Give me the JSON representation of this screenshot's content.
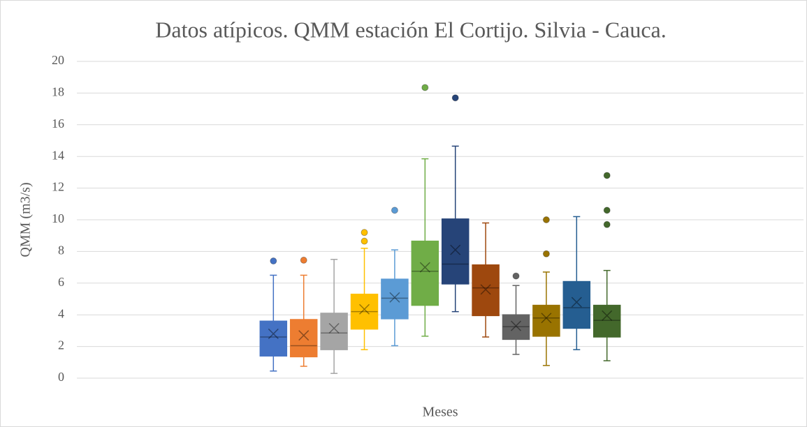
{
  "chart_data": {
    "type": "box",
    "title": "Datos atípicos. QMM estación El Cortijo. Silvia - Cauca.",
    "x_label": "Meses",
    "y_label": "QMM (m3/s)",
    "ylim": [
      0,
      20
    ],
    "yticks": [
      0,
      2,
      4,
      6,
      8,
      10,
      12,
      14,
      16,
      18,
      20
    ],
    "grid": true,
    "series": [
      {
        "color": "#4472c4",
        "min": 0.45,
        "q1": 1.4,
        "median": 2.6,
        "q3": 3.6,
        "max": 6.5,
        "mean": 2.8,
        "outliers": [
          7.4
        ]
      },
      {
        "color": "#ed7d31",
        "min": 0.75,
        "q1": 1.35,
        "median": 2.05,
        "q3": 3.7,
        "max": 6.5,
        "mean": 2.7,
        "outliers": [
          7.45
        ]
      },
      {
        "color": "#a5a5a5",
        "min": 0.3,
        "q1": 1.8,
        "median": 2.85,
        "q3": 4.1,
        "max": 7.5,
        "mean": 3.15,
        "outliers": []
      },
      {
        "color": "#ffc000",
        "min": 1.8,
        "q1": 3.1,
        "median": 4.2,
        "q3": 5.3,
        "max": 8.2,
        "mean": 4.35,
        "outliers": [
          8.65,
          9.2
        ]
      },
      {
        "color": "#5b9bd5",
        "min": 2.05,
        "q1": 3.75,
        "median": 5.05,
        "q3": 6.25,
        "max": 8.1,
        "mean": 5.1,
        "outliers": [
          10.6
        ]
      },
      {
        "color": "#70ad47",
        "min": 2.65,
        "q1": 4.6,
        "median": 6.75,
        "q3": 8.65,
        "max": 13.85,
        "mean": 7.0,
        "outliers": [
          18.35
        ]
      },
      {
        "color": "#264478",
        "min": 4.2,
        "q1": 5.95,
        "median": 7.2,
        "q3": 10.05,
        "max": 14.65,
        "mean": 8.1,
        "outliers": [
          17.7
        ]
      },
      {
        "color": "#9e480e",
        "min": 2.6,
        "q1": 3.95,
        "median": 5.7,
        "q3": 7.15,
        "max": 9.8,
        "mean": 5.6,
        "outliers": []
      },
      {
        "color": "#636363",
        "min": 1.5,
        "q1": 2.45,
        "median": 3.25,
        "q3": 4.0,
        "max": 5.85,
        "mean": 3.3,
        "outliers": [
          6.45
        ]
      },
      {
        "color": "#997300",
        "min": 0.8,
        "q1": 2.65,
        "median": 3.8,
        "q3": 4.6,
        "max": 6.7,
        "mean": 3.8,
        "outliers": [
          7.85,
          10.0
        ]
      },
      {
        "color": "#255e91",
        "min": 1.8,
        "q1": 3.15,
        "median": 4.45,
        "q3": 6.1,
        "max": 10.2,
        "mean": 4.8,
        "outliers": []
      },
      {
        "color": "#43682b",
        "min": 1.1,
        "q1": 2.6,
        "median": 3.65,
        "q3": 4.6,
        "max": 6.8,
        "mean": 3.95,
        "outliers": [
          9.7,
          10.6,
          12.8
        ]
      }
    ]
  }
}
